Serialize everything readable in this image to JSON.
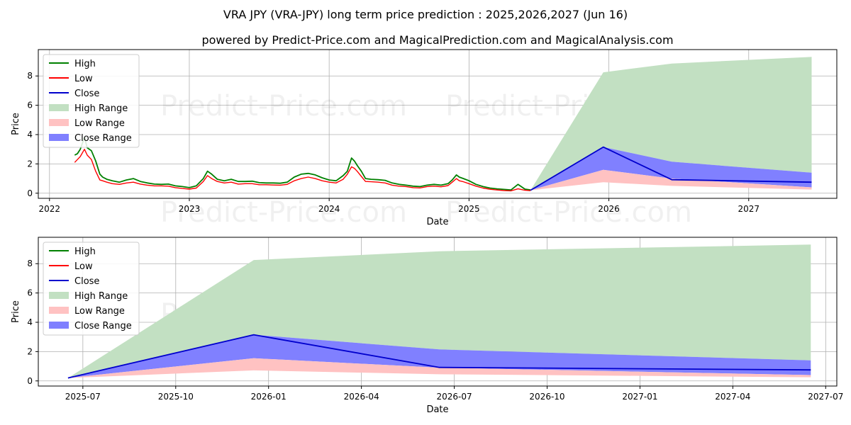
{
  "title": "VRA JPY (VRA-JPY) long term price prediction : 2025,2026,2027 (Jun 16)",
  "subtitle": "powered by Predict-Price.com and MagicalPrediction.com and MagicalAnalysis.com",
  "watermark": "Predict-Price.com",
  "colors": {
    "high": "#008000",
    "low": "#ff0000",
    "close": "#0000cd",
    "high_range": "#c2e0c2",
    "low_range": "#ffc2c2",
    "close_range": "#8080ff"
  },
  "chart_data": [
    {
      "type": "line",
      "panel": "top",
      "xlabel": "Date",
      "ylabel": "Price",
      "xlim": [
        2021.92,
        2027.63
      ],
      "ylim": [
        -0.35,
        9.8
      ],
      "x_ticks": [
        2022,
        2023,
        2024,
        2025,
        2026,
        2027
      ],
      "x_tick_labels": [
        "2022",
        "2023",
        "2024",
        "2025",
        "2026",
        "2027"
      ],
      "y_ticks": [
        0,
        2,
        4,
        6,
        8
      ],
      "y_tick_labels": [
        "0",
        "2",
        "4",
        "6",
        "8"
      ],
      "grid": true,
      "legend_position": "top-left",
      "legend": [
        "High",
        "Low",
        "Close",
        "High Range",
        "Low Range",
        "Close Range"
      ],
      "history": {
        "x": [
          2022.18,
          2022.2,
          2022.22,
          2022.25,
          2022.27,
          2022.3,
          2022.33,
          2022.36,
          2022.38,
          2022.41,
          2022.45,
          2022.5,
          2022.55,
          2022.6,
          2022.65,
          2022.7,
          2022.75,
          2022.8,
          2022.85,
          2022.9,
          2022.95,
          2023.0,
          2023.05,
          2023.1,
          2023.13,
          2023.16,
          2023.2,
          2023.25,
          2023.3,
          2023.35,
          2023.4,
          2023.45,
          2023.5,
          2023.55,
          2023.6,
          2023.65,
          2023.7,
          2023.75,
          2023.8,
          2023.85,
          2023.9,
          2023.95,
          2024.0,
          2024.05,
          2024.1,
          2024.13,
          2024.16,
          2024.18,
          2024.2,
          2024.23,
          2024.26,
          2024.3,
          2024.35,
          2024.4,
          2024.45,
          2024.5,
          2024.55,
          2024.6,
          2024.65,
          2024.7,
          2024.75,
          2024.8,
          2024.85,
          2024.88,
          2024.91,
          2024.93,
          2024.96,
          2025.0,
          2025.05,
          2025.1,
          2025.15,
          2025.2,
          2025.25,
          2025.3,
          2025.35,
          2025.4,
          2025.44
        ],
        "high": [
          2.6,
          2.7,
          3.0,
          3.8,
          3.1,
          2.9,
          2.2,
          1.3,
          1.1,
          0.95,
          0.85,
          0.75,
          0.9,
          1.0,
          0.8,
          0.7,
          0.62,
          0.6,
          0.62,
          0.5,
          0.45,
          0.38,
          0.5,
          1.0,
          1.5,
          1.3,
          0.95,
          0.85,
          0.95,
          0.8,
          0.8,
          0.82,
          0.72,
          0.7,
          0.7,
          0.68,
          0.75,
          1.1,
          1.3,
          1.35,
          1.25,
          1.05,
          0.9,
          0.85,
          1.2,
          1.5,
          2.4,
          2.2,
          1.9,
          1.5,
          1.0,
          0.95,
          0.92,
          0.88,
          0.7,
          0.6,
          0.55,
          0.48,
          0.45,
          0.55,
          0.6,
          0.55,
          0.65,
          0.9,
          1.25,
          1.1,
          1.0,
          0.85,
          0.6,
          0.45,
          0.35,
          0.3,
          0.26,
          0.22,
          0.6,
          0.28,
          0.22
        ],
        "low": [
          2.1,
          2.3,
          2.5,
          3.0,
          2.6,
          2.3,
          1.5,
          0.9,
          0.85,
          0.75,
          0.65,
          0.6,
          0.7,
          0.75,
          0.62,
          0.55,
          0.5,
          0.5,
          0.48,
          0.38,
          0.32,
          0.28,
          0.35,
          0.8,
          1.2,
          1.0,
          0.8,
          0.7,
          0.75,
          0.62,
          0.65,
          0.65,
          0.58,
          0.58,
          0.56,
          0.55,
          0.6,
          0.85,
          1.0,
          1.1,
          1.0,
          0.85,
          0.75,
          0.7,
          0.95,
          1.3,
          1.8,
          1.7,
          1.5,
          1.15,
          0.8,
          0.78,
          0.75,
          0.7,
          0.55,
          0.48,
          0.45,
          0.38,
          0.36,
          0.45,
          0.48,
          0.44,
          0.52,
          0.75,
          1.0,
          0.85,
          0.78,
          0.65,
          0.48,
          0.35,
          0.27,
          0.22,
          0.18,
          0.16,
          0.3,
          0.2,
          0.17
        ]
      },
      "forecast": {
        "x": [
          2025.44,
          2025.96,
          2026.45,
          2027.45
        ],
        "high_range_top": [
          0.2,
          8.25,
          8.85,
          9.3
        ],
        "low_range_top": [
          0.2,
          1.6,
          1.0,
          0.4
        ],
        "low_range_bottom": [
          0.2,
          0.75,
          0.5,
          0.25
        ],
        "close_range_top": [
          0.2,
          3.15,
          2.15,
          1.4
        ],
        "close": [
          0.2,
          3.15,
          0.92,
          0.75
        ]
      }
    },
    {
      "type": "line",
      "panel": "bottom",
      "xlabel": "Date",
      "ylabel": "Price",
      "xlim": [
        2025.38,
        2027.53
      ],
      "ylim": [
        -0.35,
        9.8
      ],
      "x_ticks": [
        2025.5,
        2025.75,
        2026.0,
        2026.25,
        2026.5,
        2026.75,
        2027.0,
        2027.25,
        2027.5
      ],
      "x_tick_labels": [
        "2025-07",
        "2025-10",
        "2026-01",
        "2026-04",
        "2026-07",
        "2026-10",
        "2027-01",
        "2027-04",
        "2027-07"
      ],
      "y_ticks": [
        0,
        2,
        4,
        6,
        8
      ],
      "y_tick_labels": [
        "0",
        "2",
        "4",
        "6",
        "8"
      ],
      "grid": true,
      "legend_position": "top-left",
      "legend": [
        "High",
        "Low",
        "Close",
        "High Range",
        "Low Range",
        "Close Range"
      ],
      "forecast": {
        "x": [
          2025.46,
          2025.96,
          2026.46,
          2027.46
        ],
        "high_range_top": [
          0.2,
          8.25,
          8.85,
          9.3
        ],
        "low_range_top": [
          0.2,
          1.55,
          0.9,
          0.4
        ],
        "low_range_bottom": [
          0.2,
          0.72,
          0.45,
          0.25
        ],
        "close_range_top": [
          0.2,
          3.15,
          2.15,
          1.4
        ],
        "close": [
          0.2,
          3.15,
          0.92,
          0.75
        ]
      }
    }
  ]
}
